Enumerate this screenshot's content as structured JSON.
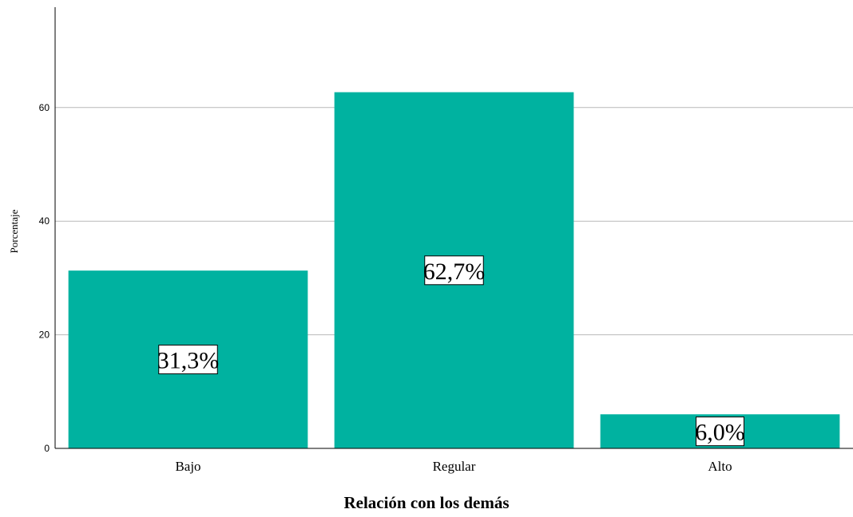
{
  "chart_data": {
    "type": "bar",
    "categories": [
      "Bajo",
      "Regular",
      "Alto"
    ],
    "values": [
      31.3,
      62.7,
      6.0
    ],
    "data_labels": [
      "31,3%",
      "62,7%",
      "6,0%"
    ],
    "title": "",
    "xlabel": "Relación con los demás",
    "ylabel": "Porcentaje",
    "ylim": [
      0,
      77
    ],
    "yticks": [
      0,
      20,
      40,
      60
    ],
    "grid": true,
    "legend": "none",
    "bar_color": "#00b2a0"
  }
}
